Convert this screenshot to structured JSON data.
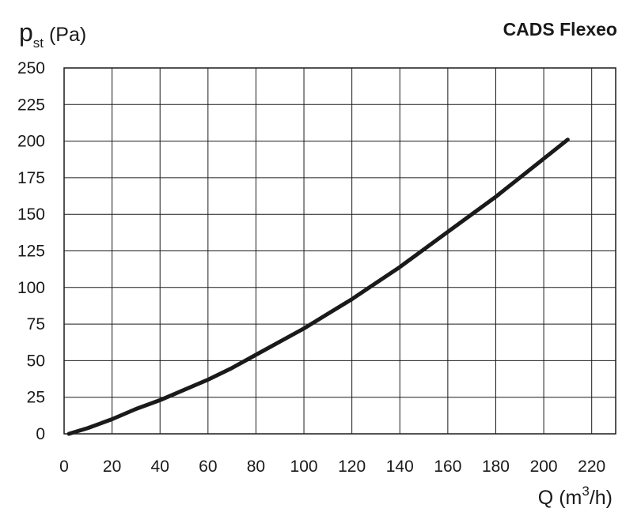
{
  "chart_data": {
    "type": "line",
    "title": "CADS Flexeo",
    "ylabel": {
      "main": "p",
      "sub": "st",
      "unit": " (Pa)"
    },
    "xlabel": {
      "main": "Q (m",
      "sup": "3",
      "unit": "/h)"
    },
    "xlim": [
      0,
      230
    ],
    "ylim": [
      0,
      250
    ],
    "x_ticks": [
      0,
      20,
      40,
      60,
      80,
      100,
      120,
      140,
      160,
      180,
      200,
      220
    ],
    "y_ticks": [
      0,
      25,
      50,
      75,
      100,
      125,
      150,
      175,
      200,
      225,
      250
    ],
    "x_tick_labels": [
      "0",
      "20",
      "40",
      "60",
      "80",
      "100",
      "120",
      "140",
      "160",
      "180",
      "200",
      "220"
    ],
    "y_tick_labels": [
      "0",
      "25",
      "50",
      "75",
      "100",
      "125",
      "150",
      "175",
      "200",
      "225",
      "250"
    ],
    "grid": true,
    "series": [
      {
        "color": "#1a1a1a",
        "x": [
          2,
          10,
          20,
          30,
          40,
          50,
          60,
          70,
          80,
          90,
          100,
          110,
          120,
          130,
          140,
          150,
          160,
          170,
          180,
          190,
          200,
          210
        ],
        "y": [
          0,
          4,
          10,
          17,
          23,
          30,
          37,
          45,
          54,
          63,
          72,
          82,
          92,
          103,
          114,
          126,
          138,
          150,
          162,
          175,
          188,
          201
        ]
      }
    ]
  }
}
